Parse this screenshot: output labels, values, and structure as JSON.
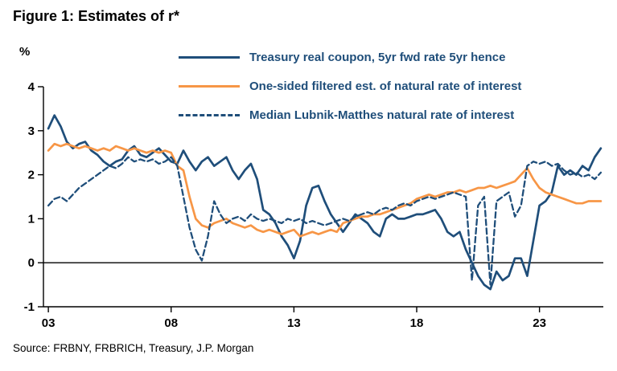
{
  "chart_data": {
    "type": "line",
    "title": "Figure 1: Estimates of r*",
    "ylabel": "%",
    "source": "Source: FRBNY, FRBRICH, Treasury, J.P. Morgan",
    "xlim": [
      2002.8,
      2025.6
    ],
    "ylim": [
      -1,
      4
    ],
    "x_start": 2003.0,
    "x_step": 0.25,
    "x_ticks": [
      {
        "value": 2003,
        "label": "03"
      },
      {
        "value": 2008,
        "label": "08"
      },
      {
        "value": 2013,
        "label": "13"
      },
      {
        "value": 2018,
        "label": "18"
      },
      {
        "value": 2023,
        "label": "23"
      }
    ],
    "y_ticks": [
      -1,
      0,
      1,
      2,
      3,
      4
    ],
    "zero_line": true,
    "grid": false,
    "legend_position": "top-center",
    "series": [
      {
        "name": "Treasury real coupon, 5yr fwd rate 5yr hence",
        "color": "#1f4e7a",
        "style": "solid",
        "values": [
          3.05,
          3.35,
          3.1,
          2.75,
          2.6,
          2.7,
          2.75,
          2.55,
          2.45,
          2.3,
          2.2,
          2.3,
          2.35,
          2.55,
          2.65,
          2.45,
          2.4,
          2.5,
          2.6,
          2.45,
          2.3,
          2.25,
          2.55,
          2.3,
          2.1,
          2.3,
          2.4,
          2.2,
          2.3,
          2.4,
          2.1,
          1.9,
          2.1,
          2.25,
          1.9,
          1.2,
          1.1,
          0.9,
          0.6,
          0.4,
          0.1,
          0.5,
          1.3,
          1.7,
          1.75,
          1.4,
          1.1,
          0.9,
          0.7,
          0.9,
          1.1,
          1.0,
          0.9,
          0.7,
          0.6,
          1.0,
          1.1,
          1.0,
          1.0,
          1.05,
          1.1,
          1.1,
          1.15,
          1.2,
          1.0,
          0.7,
          0.6,
          0.7,
          0.3,
          0.0,
          -0.3,
          -0.5,
          -0.6,
          -0.2,
          -0.4,
          -0.3,
          0.1,
          0.1,
          -0.3,
          0.5,
          1.3,
          1.4,
          1.6,
          2.2,
          2.0,
          2.1,
          2.0,
          2.2,
          2.1,
          2.4,
          2.6
        ]
      },
      {
        "name": "One-sided filtered est. of natural rate of interest",
        "color": "#f79646",
        "style": "solid",
        "values": [
          2.55,
          2.7,
          2.65,
          2.7,
          2.65,
          2.6,
          2.65,
          2.6,
          2.55,
          2.6,
          2.55,
          2.65,
          2.6,
          2.55,
          2.6,
          2.55,
          2.5,
          2.55,
          2.5,
          2.55,
          2.5,
          2.2,
          2.1,
          1.5,
          1.0,
          0.85,
          0.8,
          0.9,
          0.95,
          1.0,
          0.9,
          0.85,
          0.8,
          0.85,
          0.75,
          0.7,
          0.75,
          0.7,
          0.65,
          0.7,
          0.75,
          0.6,
          0.65,
          0.7,
          0.65,
          0.7,
          0.75,
          0.7,
          0.9,
          0.95,
          1.0,
          1.05,
          1.05,
          1.1,
          1.1,
          1.15,
          1.2,
          1.25,
          1.3,
          1.35,
          1.45,
          1.5,
          1.55,
          1.5,
          1.55,
          1.6,
          1.6,
          1.65,
          1.6,
          1.65,
          1.7,
          1.7,
          1.75,
          1.7,
          1.75,
          1.8,
          1.85,
          2.0,
          2.15,
          1.9,
          1.7,
          1.6,
          1.55,
          1.5,
          1.45,
          1.4,
          1.35,
          1.35,
          1.4,
          1.4,
          1.4
        ]
      },
      {
        "name": "Median Lubnik-Matthes natural rate of interest",
        "color": "#1f4e7a",
        "style": "dashed",
        "values": [
          1.3,
          1.45,
          1.5,
          1.4,
          1.55,
          1.7,
          1.8,
          1.9,
          2.0,
          2.1,
          2.2,
          2.15,
          2.25,
          2.4,
          2.3,
          2.35,
          2.3,
          2.35,
          2.25,
          2.3,
          2.4,
          2.2,
          1.5,
          0.8,
          0.3,
          0.05,
          0.6,
          1.4,
          1.1,
          0.9,
          1.0,
          1.05,
          0.95,
          1.1,
          1.0,
          0.95,
          1.0,
          0.95,
          0.9,
          1.0,
          0.95,
          1.0,
          0.9,
          0.95,
          0.9,
          0.85,
          0.9,
          0.95,
          1.0,
          0.95,
          1.05,
          1.1,
          1.15,
          1.1,
          1.2,
          1.25,
          1.2,
          1.3,
          1.35,
          1.3,
          1.4,
          1.45,
          1.5,
          1.45,
          1.5,
          1.55,
          1.6,
          1.55,
          1.5,
          -0.4,
          1.3,
          1.5,
          -0.5,
          1.4,
          1.5,
          1.6,
          1.05,
          1.3,
          2.2,
          2.3,
          2.25,
          2.3,
          2.2,
          2.25,
          2.1,
          2.0,
          2.05,
          1.95,
          2.0,
          1.9,
          2.05
        ]
      }
    ]
  }
}
